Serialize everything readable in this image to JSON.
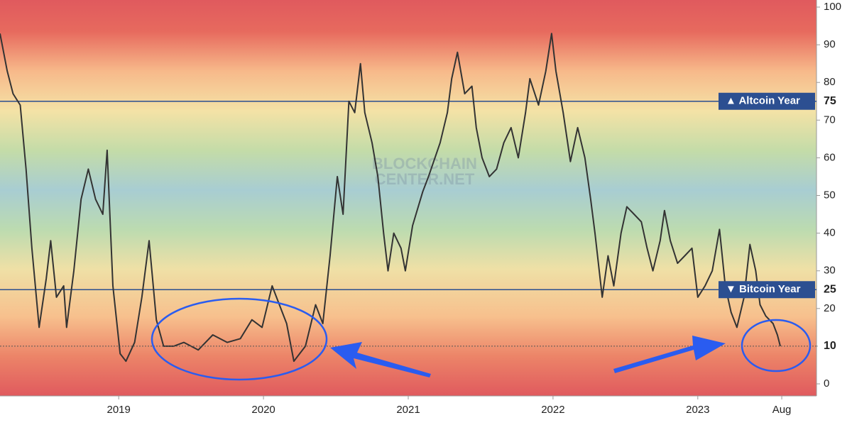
{
  "chart_data": {
    "type": "line",
    "watermark": [
      "BLOCKCHAIN",
      "CENTER.NET"
    ],
    "x": [
      2018.18,
      2018.23,
      2018.27,
      2018.32,
      2018.36,
      2018.4,
      2018.45,
      2018.5,
      2018.53,
      2018.57,
      2018.62,
      2018.64,
      2018.69,
      2018.74,
      2018.79,
      2018.84,
      2018.89,
      2018.92,
      2018.96,
      2019.01,
      2019.05,
      2019.11,
      2019.16,
      2019.21,
      2019.26,
      2019.31,
      2019.38,
      2019.45,
      2019.55,
      2019.65,
      2019.75,
      2019.84,
      2019.92,
      2019.99,
      2020.06,
      2020.11,
      2020.16,
      2020.21,
      2020.29,
      2020.36,
      2020.41,
      2020.46,
      2020.51,
      2020.55,
      2020.59,
      2020.63,
      2020.67,
      2020.7,
      2020.75,
      2020.79,
      2020.83,
      2020.86,
      2020.9,
      2020.95,
      2020.98,
      2021.03,
      2021.1,
      2021.14,
      2021.22,
      2021.27,
      2021.3,
      2021.34,
      2021.39,
      2021.44,
      2021.47,
      2021.51,
      2021.56,
      2021.61,
      2021.66,
      2021.71,
      2021.76,
      2021.81,
      2021.84,
      2021.9,
      2021.95,
      2021.99,
      2022.02,
      2022.07,
      2022.12,
      2022.17,
      2022.22,
      2022.26,
      2022.29,
      2022.34,
      2022.38,
      2022.42,
      2022.47,
      2022.51,
      2022.56,
      2022.61,
      2022.65,
      2022.69,
      2022.74,
      2022.77,
      2022.81,
      2022.86,
      2022.91,
      2022.96,
      2023.0,
      2023.05,
      2023.1,
      2023.15,
      2023.19,
      2023.23,
      2023.27,
      2023.32,
      2023.36,
      2023.4,
      2023.43,
      2023.47,
      2023.52,
      2023.55,
      2023.57
    ],
    "series": [
      {
        "color": "#333333",
        "values": [
          93,
          83,
          77,
          74,
          57,
          36,
          15,
          28,
          38,
          23,
          26,
          15,
          30,
          49,
          57,
          49,
          45,
          62,
          26,
          8,
          6,
          11,
          23,
          38,
          17,
          10,
          10,
          11,
          9,
          13,
          11,
          12,
          17,
          15,
          26,
          21,
          16,
          6,
          10,
          21,
          16,
          34,
          55,
          45,
          75,
          72,
          85,
          72,
          64,
          55,
          40,
          30,
          40,
          36,
          30,
          42,
          51,
          55,
          64,
          72,
          81,
          88,
          77,
          79,
          68,
          60,
          55,
          57,
          64,
          68,
          60,
          72,
          81,
          74,
          83,
          93,
          83,
          72,
          59,
          68,
          60,
          49,
          40,
          23,
          34,
          26,
          40,
          47,
          45,
          43,
          36,
          30,
          38,
          46,
          38,
          32,
          34,
          36,
          23,
          26,
          30,
          41,
          26,
          19,
          15,
          23,
          37,
          30,
          21,
          18,
          16,
          13,
          10
        ]
      }
    ],
    "xlim": [
      2018.18,
      2023.82
    ],
    "xticks": [
      {
        "value": 2019,
        "label": "2019"
      },
      {
        "value": 2020,
        "label": "2020"
      },
      {
        "value": 2021,
        "label": "2021"
      },
      {
        "value": 2022,
        "label": "2022"
      },
      {
        "value": 2023,
        "label": "2023"
      },
      {
        "value": 2023.58,
        "label": "Aug"
      }
    ],
    "ylim": [
      0,
      100
    ],
    "yticks": [
      0,
      10,
      20,
      30,
      40,
      50,
      60,
      70,
      80,
      90,
      100
    ],
    "reference_lines": [
      {
        "value": 75,
        "label": "▲ Altcoin Year"
      },
      {
        "value": 25,
        "label": "▼ Bitcoin Year"
      }
    ]
  }
}
